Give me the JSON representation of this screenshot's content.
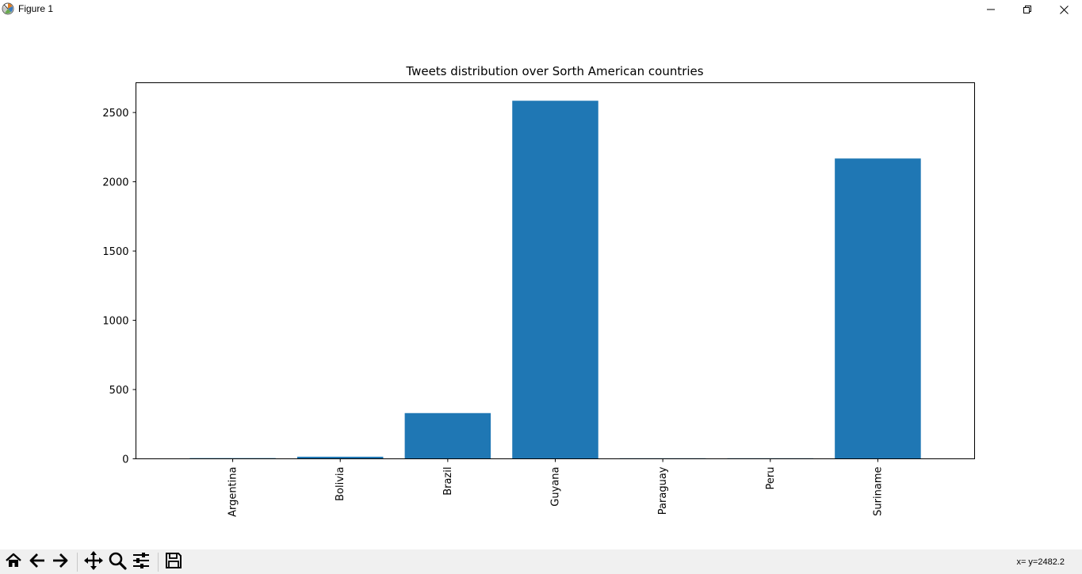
{
  "window": {
    "title": "Figure 1",
    "controls": {
      "minimize_icon": "minimize-icon",
      "maximize_icon": "restore-icon",
      "close_icon": "close-icon"
    }
  },
  "toolbar": {
    "buttons": [
      {
        "name": "home-button",
        "icon": "home-icon"
      },
      {
        "name": "back-button",
        "icon": "arrow-left-icon"
      },
      {
        "name": "forward-button",
        "icon": "arrow-right-icon"
      },
      {
        "name": "pan-button",
        "icon": "move-icon"
      },
      {
        "name": "zoom-button",
        "icon": "magnifier-icon"
      },
      {
        "name": "configure-subplots-button",
        "icon": "sliders-icon"
      },
      {
        "name": "save-button",
        "icon": "floppy-disk-icon"
      }
    ],
    "coords_text": "x= y=2482.2"
  },
  "chart_data": {
    "type": "bar",
    "title": "Tweets distribution over Sorth American countries",
    "xlabel": "",
    "ylabel": "",
    "categories": [
      "Argentina",
      "Bolivia",
      "Brazil",
      "Guyana",
      "Paraguay",
      "Peru",
      "Suriname"
    ],
    "values": [
      5,
      15,
      330,
      2585,
      4,
      4,
      2168
    ],
    "ylim": [
      0,
      2715
    ],
    "yticks": [
      0,
      500,
      1000,
      1500,
      2000,
      2500
    ],
    "ytick_labels": [
      "0",
      "500",
      "1000",
      "1500",
      "2000",
      "2500"
    ],
    "bar_color": "#1f77b4",
    "grid": false,
    "x_tick_rotation": "vertical"
  }
}
